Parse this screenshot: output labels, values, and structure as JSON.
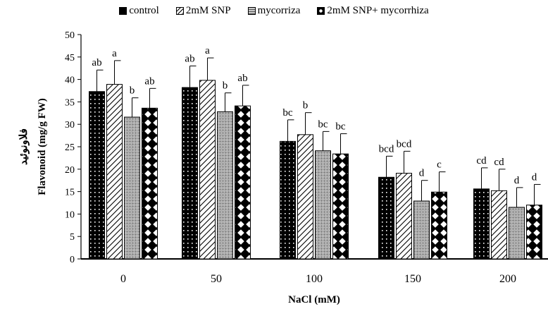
{
  "chart_data": {
    "type": "bar",
    "xlabel": "NaCl (mM)",
    "ylabel": "Flavonoid (mg/g FW)",
    "ylabel_secondary": "فلاونوئید",
    "categories": [
      "0",
      "50",
      "100",
      "150",
      "200"
    ],
    "ylim": [
      0,
      50
    ],
    "yticks": [
      0,
      5,
      10,
      15,
      20,
      25,
      30,
      35,
      40,
      45,
      50
    ],
    "legend_position": "top",
    "grid": false,
    "series": [
      {
        "name": "control",
        "pattern": "dotted-black",
        "values": [
          37.3,
          38.2,
          26.2,
          18.2,
          15.6
        ],
        "errors": [
          4.8,
          4.8,
          4.8,
          4.7,
          4.7
        ],
        "labels": [
          "ab",
          "ab",
          "bc",
          "bcd",
          "cd"
        ]
      },
      {
        "name": "2mM SNP",
        "pattern": "diagonal-white",
        "values": [
          38.9,
          39.8,
          27.7,
          19.1,
          15.2
        ],
        "errors": [
          5.3,
          5.0,
          4.9,
          4.9,
          4.8
        ],
        "labels": [
          "a",
          "a",
          "b",
          "bcd",
          "cd"
        ]
      },
      {
        "name": "mycorriza",
        "pattern": "grid-grey",
        "values": [
          31.6,
          32.8,
          24.1,
          12.9,
          11.5
        ],
        "errors": [
          4.3,
          4.2,
          4.3,
          4.6,
          4.4
        ],
        "labels": [
          "b",
          "b",
          "bc",
          "d",
          "d"
        ]
      },
      {
        "name": "2mM SNP+ mycorrhiza",
        "pattern": "diamonds-black",
        "values": [
          33.6,
          34.1,
          23.4,
          14.9,
          12.0
        ],
        "errors": [
          4.4,
          4.6,
          4.5,
          4.5,
          4.6
        ],
        "labels": [
          "ab",
          "ab",
          "bc",
          "c",
          "d"
        ]
      }
    ]
  }
}
